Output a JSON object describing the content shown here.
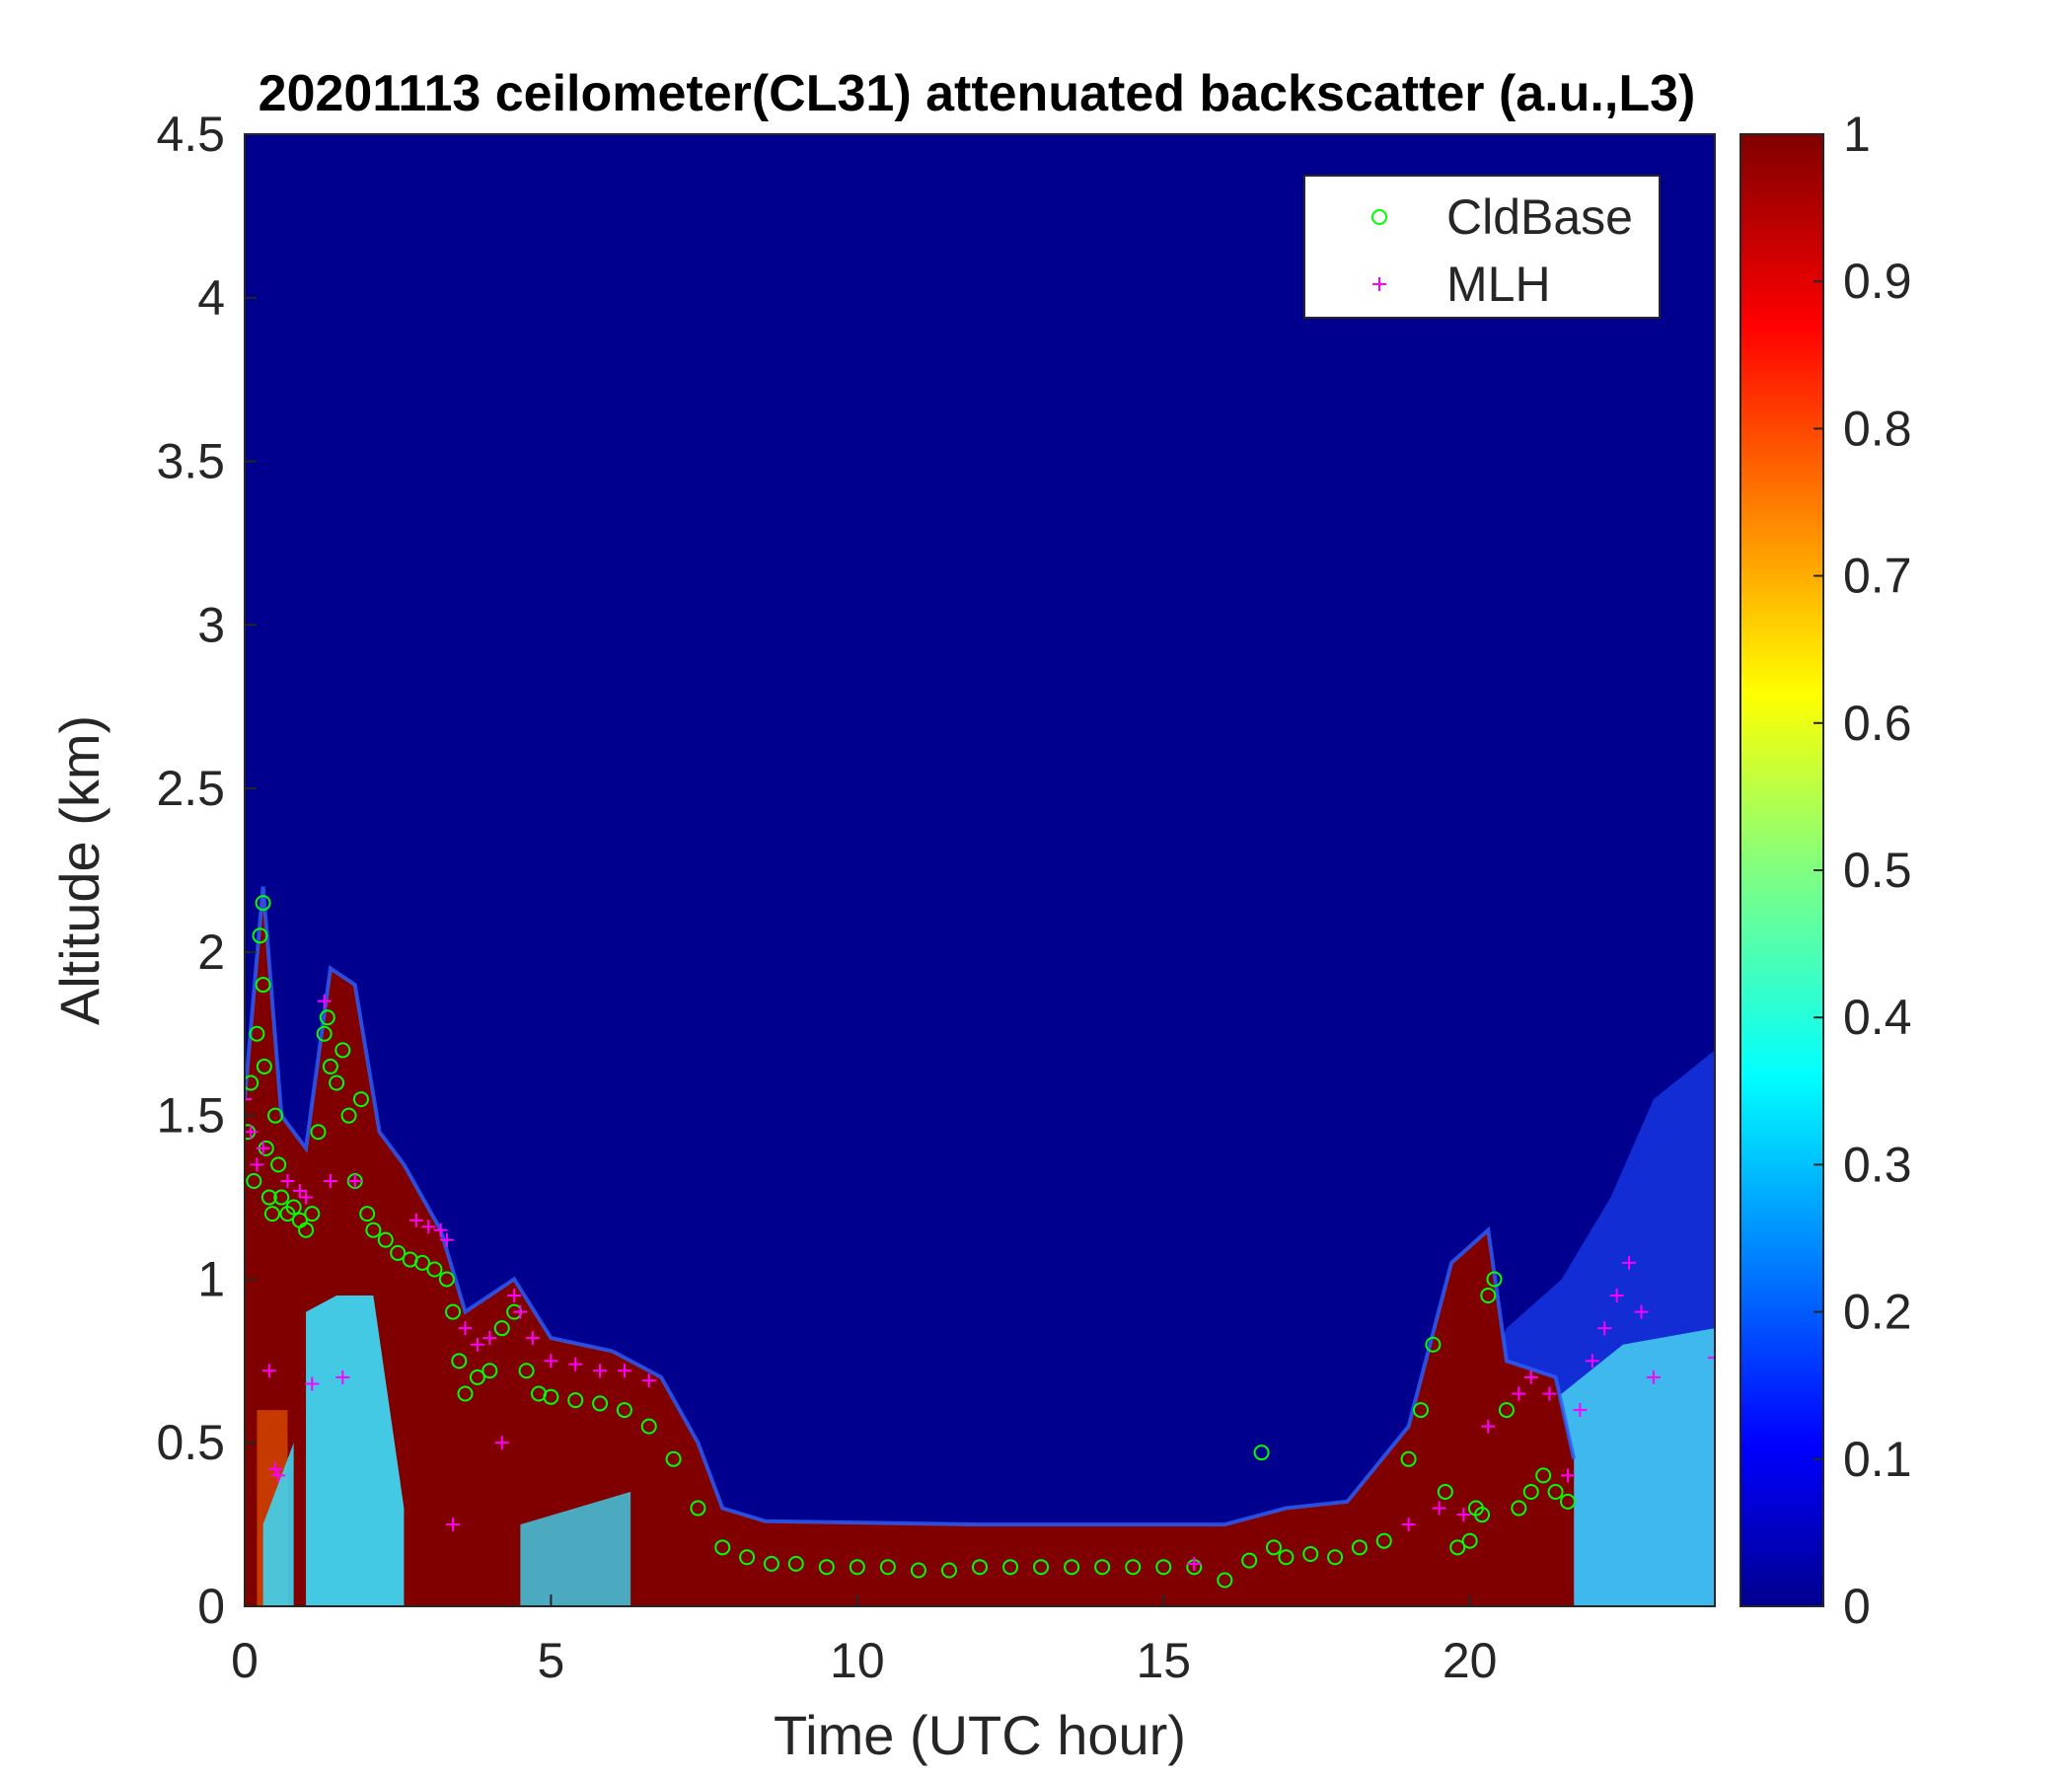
{
  "chart_data": {
    "type": "heatmap",
    "title": "20201113 ceilometer(CL31) attenuated backscatter (a.u.,L3)",
    "xlabel": "Time (UTC hour)",
    "ylabel": "Altitude (km)",
    "xlim": [
      0,
      24
    ],
    "ylim": [
      0,
      4.5
    ],
    "x_ticks": [
      "0",
      "5",
      "10",
      "15",
      "20"
    ],
    "y_ticks": [
      "0",
      "0.5",
      "1",
      "1.5",
      "2",
      "2.5",
      "3",
      "3.5",
      "4",
      "4.5"
    ],
    "colorbar": {
      "colormap": "jet",
      "range": [
        0,
        1
      ],
      "ticks": [
        "0",
        "0.1",
        "0.2",
        "0.3",
        "0.4",
        "0.5",
        "0.6",
        "0.7",
        "0.8",
        "0.9",
        "1"
      ]
    },
    "legend": {
      "position": "top-right",
      "entries": [
        {
          "label": "CldBase",
          "marker": "circle",
          "color": "#00ff00"
        },
        {
          "label": "MLH",
          "marker": "plus",
          "color": "#ff00ff"
        }
      ]
    },
    "background_value": 0.0,
    "aerosol_layer": {
      "description_value": "saturated backscatter (~1.0) layer below cloud base",
      "top_km": [
        [
          0,
          1.55
        ],
        [
          0.3,
          2.2
        ],
        [
          0.6,
          1.5
        ],
        [
          1.0,
          1.4
        ],
        [
          1.4,
          1.95
        ],
        [
          1.8,
          1.9
        ],
        [
          2.2,
          1.45
        ],
        [
          2.6,
          1.35
        ],
        [
          3.2,
          1.15
        ],
        [
          3.6,
          0.9
        ],
        [
          4.4,
          1.0
        ],
        [
          5.0,
          0.82
        ],
        [
          6.0,
          0.78
        ],
        [
          6.8,
          0.7
        ],
        [
          7.4,
          0.5
        ],
        [
          7.8,
          0.3
        ],
        [
          8.5,
          0.26
        ],
        [
          12,
          0.25
        ],
        [
          16,
          0.25
        ],
        [
          17,
          0.3
        ],
        [
          18,
          0.32
        ],
        [
          19,
          0.55
        ],
        [
          19.7,
          1.05
        ],
        [
          20.3,
          1.15
        ],
        [
          20.6,
          0.75
        ],
        [
          21.4,
          0.7
        ],
        [
          21.7,
          0.45
        ]
      ],
      "end_hour": 19.7
    },
    "series": [
      {
        "name": "CldBase",
        "marker": "circle",
        "x": [
          0.05,
          0.1,
          0.15,
          0.2,
          0.25,
          0.3,
          0.3,
          0.32,
          0.35,
          0.4,
          0.45,
          0.5,
          0.55,
          0.6,
          0.7,
          0.8,
          0.9,
          1.0,
          1.1,
          1.2,
          1.3,
          1.35,
          1.4,
          1.5,
          1.6,
          1.7,
          1.8,
          1.9,
          2.0,
          2.1,
          2.3,
          2.5,
          2.7,
          2.9,
          3.1,
          3.3,
          3.4,
          3.5,
          3.6,
          3.8,
          4.0,
          4.2,
          4.4,
          4.6,
          4.8,
          5.0,
          5.4,
          5.8,
          6.2,
          6.6,
          7.0,
          7.4,
          7.8,
          8.2,
          8.6,
          9.0,
          9.5,
          10.0,
          10.5,
          11.0,
          11.5,
          12.0,
          12.5,
          13.0,
          13.5,
          14.0,
          14.5,
          15.0,
          15.5,
          16.0,
          16.4,
          16.6,
          16.8,
          17.0,
          17.4,
          17.8,
          18.2,
          18.6,
          19.0,
          19.2,
          19.4,
          19.6,
          19.8,
          20.0,
          20.1,
          20.2,
          20.3,
          20.4,
          20.6,
          20.8,
          21.0,
          21.2,
          21.4,
          21.6
        ],
        "y": [
          1.45,
          1.6,
          1.3,
          1.75,
          2.05,
          2.15,
          1.9,
          1.65,
          1.4,
          1.25,
          1.2,
          1.5,
          1.35,
          1.25,
          1.2,
          1.22,
          1.18,
          1.15,
          1.2,
          1.45,
          1.75,
          1.8,
          1.65,
          1.6,
          1.7,
          1.5,
          1.3,
          1.55,
          1.2,
          1.15,
          1.12,
          1.08,
          1.06,
          1.05,
          1.03,
          1.0,
          0.9,
          0.75,
          0.65,
          0.7,
          0.72,
          0.85,
          0.9,
          0.72,
          0.65,
          0.64,
          0.63,
          0.62,
          0.6,
          0.55,
          0.45,
          0.3,
          0.18,
          0.15,
          0.13,
          0.13,
          0.12,
          0.12,
          0.12,
          0.11,
          0.11,
          0.12,
          0.12,
          0.12,
          0.12,
          0.12,
          0.12,
          0.12,
          0.12,
          0.08,
          0.14,
          0.47,
          0.18,
          0.15,
          0.16,
          0.15,
          0.18,
          0.2,
          0.45,
          0.6,
          0.8,
          0.35,
          0.18,
          0.2,
          0.3,
          0.28,
          0.95,
          1.0,
          0.6,
          0.3,
          0.35,
          0.4,
          0.35,
          0.32
        ]
      },
      {
        "name": "MLH",
        "marker": "plus",
        "x": [
          0.0,
          0.1,
          0.2,
          0.3,
          0.4,
          0.5,
          0.55,
          0.7,
          0.9,
          1.0,
          1.1,
          1.3,
          1.4,
          1.6,
          1.8,
          2.8,
          3.0,
          3.2,
          3.3,
          3.4,
          3.6,
          3.8,
          4.0,
          4.2,
          4.4,
          4.5,
          4.7,
          5.0,
          5.4,
          5.8,
          6.2,
          6.6,
          15.5,
          19.0,
          19.5,
          19.9,
          20.3,
          20.8,
          21.0,
          21.3,
          21.6,
          21.8,
          22.0,
          22.2,
          22.4,
          22.6,
          22.8,
          23.0,
          24.0
        ],
        "y": [
          1.55,
          1.45,
          1.35,
          1.4,
          0.72,
          0.42,
          0.4,
          1.3,
          1.27,
          1.25,
          0.68,
          1.85,
          1.3,
          0.7,
          1.3,
          1.18,
          1.16,
          1.15,
          1.12,
          0.25,
          0.85,
          0.8,
          0.82,
          0.5,
          0.95,
          0.9,
          0.82,
          0.75,
          0.74,
          0.72,
          0.72,
          0.69,
          0.13,
          0.25,
          0.3,
          0.28,
          0.55,
          0.65,
          0.7,
          0.65,
          0.4,
          0.6,
          0.75,
          0.85,
          0.95,
          1.05,
          0.9,
          0.7,
          0.76
        ]
      }
    ]
  }
}
